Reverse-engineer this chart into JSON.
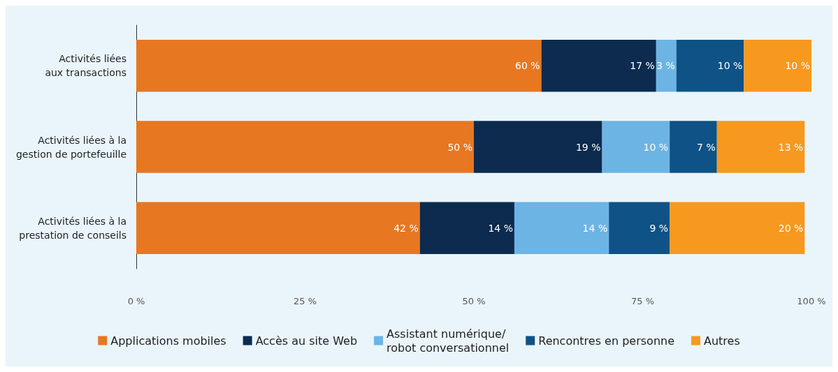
{
  "chart_data": {
    "type": "bar",
    "orientation": "horizontal",
    "stacked": true,
    "categories": [
      "Activités liées\naux transactions",
      "Activités liées à la\ngestion de portefeuille",
      "Activités liées à la\nprestation de conseils"
    ],
    "series": [
      {
        "name": "Applications mobiles",
        "color": "#e87722",
        "values": [
          60,
          50,
          42
        ],
        "value_labels": [
          "60 %",
          "50 %",
          "42 %"
        ]
      },
      {
        "name": "Accès au site Web",
        "color": "#0d2b4e",
        "values": [
          17,
          19,
          14
        ],
        "value_labels": [
          "17 %",
          "19 %",
          "14 %"
        ]
      },
      {
        "name": "Assistant numérique/\nrobot conversationnel",
        "color": "#6cb4e4",
        "values": [
          3,
          10,
          14
        ],
        "value_labels": [
          "3 %",
          "10 %",
          "14 %"
        ]
      },
      {
        "name": "Rencontres en personne",
        "color": "#0e5286",
        "values": [
          10,
          7,
          9
        ],
        "value_labels": [
          "10 %",
          "7 %",
          "9 %"
        ]
      },
      {
        "name": "Autres",
        "color": "#f7991f",
        "values": [
          10,
          13,
          20
        ],
        "value_labels": [
          "10 %",
          "13 %",
          "20 %"
        ]
      }
    ],
    "xlim": [
      0,
      100
    ],
    "xticks": [
      {
        "value": 0,
        "label": "0 %"
      },
      {
        "value": 25,
        "label": "25 %"
      },
      {
        "value": 50,
        "label": "50 %"
      },
      {
        "value": 75,
        "label": "75 %"
      },
      {
        "value": 100,
        "label": "100 %"
      }
    ],
    "grid": false,
    "legend": "bottom"
  }
}
